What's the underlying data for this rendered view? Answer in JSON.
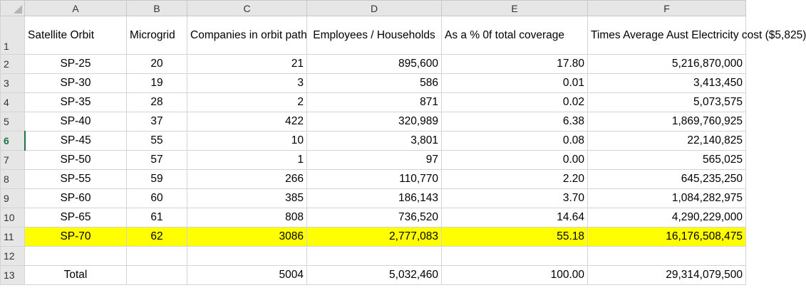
{
  "columns": [
    "A",
    "B",
    "C",
    "D",
    "E",
    "F"
  ],
  "headers": {
    "a": "Satellite Orbit",
    "b": "Microgrid",
    "c": "Companies in orbit path",
    "d": "Employees / Households",
    "e": "As a % 0f total coverage",
    "f": "Times Average Aust Electricity cost ($5,825)"
  },
  "row_numbers": [
    "1",
    "2",
    "3",
    "4",
    "5",
    "6",
    "7",
    "8",
    "9",
    "10",
    "11",
    "12",
    "13"
  ],
  "rows": [
    {
      "orbit": "SP-25",
      "microgrid": "20",
      "companies": "21",
      "employees": "895,600",
      "pct": "17.80",
      "cost": "5,216,870,000"
    },
    {
      "orbit": "SP-30",
      "microgrid": "19",
      "companies": "3",
      "employees": "586",
      "pct": "0.01",
      "cost": "3,413,450"
    },
    {
      "orbit": "SP-35",
      "microgrid": "28",
      "companies": "2",
      "employees": "871",
      "pct": "0.02",
      "cost": "5,073,575"
    },
    {
      "orbit": "SP-40",
      "microgrid": "37",
      "companies": "422",
      "employees": "320,989",
      "pct": "6.38",
      "cost": "1,869,760,925"
    },
    {
      "orbit": "SP-45",
      "microgrid": "55",
      "companies": "10",
      "employees": "3,801",
      "pct": "0.08",
      "cost": "22,140,825"
    },
    {
      "orbit": "SP-50",
      "microgrid": "57",
      "companies": "1",
      "employees": "97",
      "pct": "0.00",
      "cost": "565,025"
    },
    {
      "orbit": "SP-55",
      "microgrid": "59",
      "companies": "266",
      "employees": "110,770",
      "pct": "2.20",
      "cost": "645,235,250"
    },
    {
      "orbit": "SP-60",
      "microgrid": "60",
      "companies": "385",
      "employees": "186,143",
      "pct": "3.70",
      "cost": "1,084,282,975"
    },
    {
      "orbit": "SP-65",
      "microgrid": "61",
      "companies": "808",
      "employees": "736,520",
      "pct": "14.64",
      "cost": "4,290,229,000"
    },
    {
      "orbit": "SP-70",
      "microgrid": "62",
      "companies": "3086",
      "employees": "2,777,083",
      "pct": "55.18",
      "cost": "16,176,508,475"
    }
  ],
  "total": {
    "label": "Total",
    "companies": "5004",
    "employees": "5,032,460",
    "pct": "100.00",
    "cost": "29,314,079,500"
  },
  "highlight_color": "#ffff00",
  "active_row_color": "#217346"
}
